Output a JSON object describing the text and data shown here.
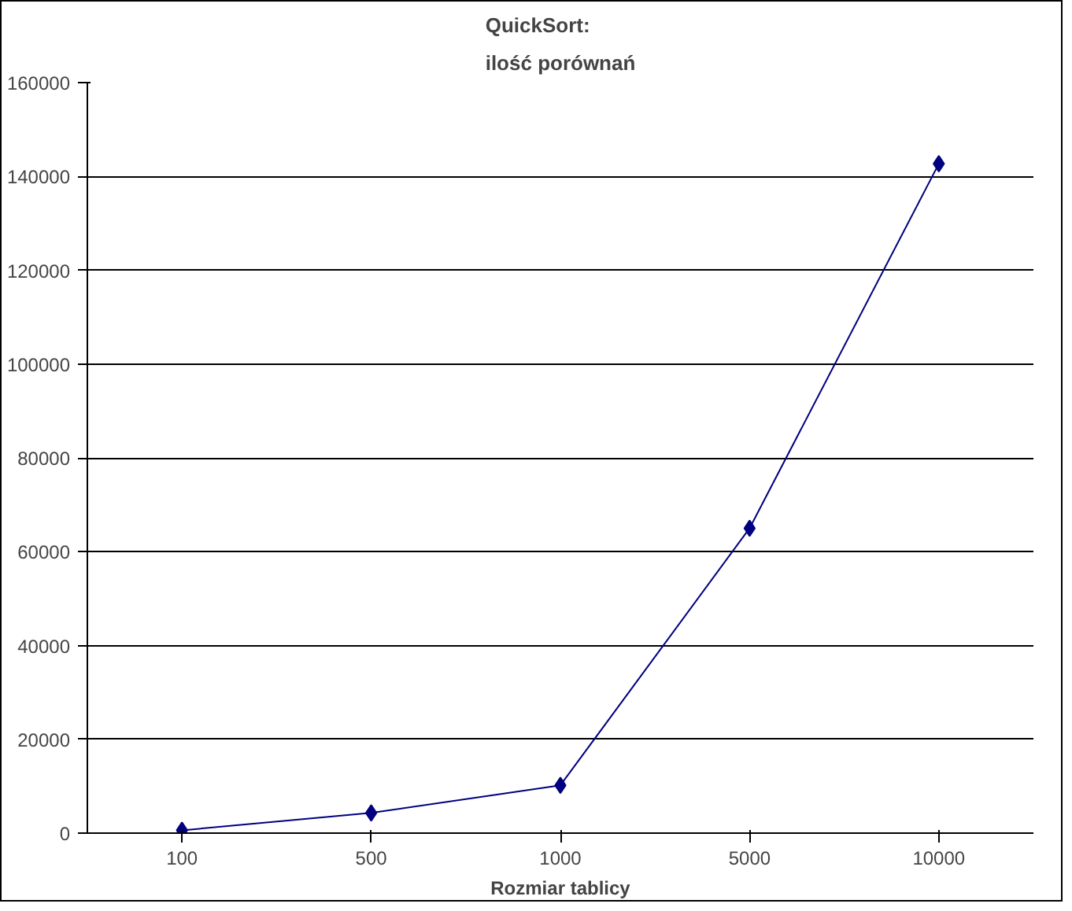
{
  "chart_data": {
    "type": "line",
    "title": "QuickSort:\nilość porównań",
    "xlabel": "Rozmiar tablicy",
    "categories": [
      "100",
      "500",
      "1000",
      "5000",
      "10000"
    ],
    "series": [
      {
        "color": "#000080",
        "values": [
          600,
          4300,
          10200,
          65000,
          142700
        ]
      }
    ],
    "ylim": [
      0,
      160000
    ],
    "yticks": [
      0,
      20000,
      40000,
      60000,
      80000,
      100000,
      120000,
      140000,
      160000
    ],
    "grid": "y",
    "marker": "diamond",
    "line_style": "solid"
  }
}
